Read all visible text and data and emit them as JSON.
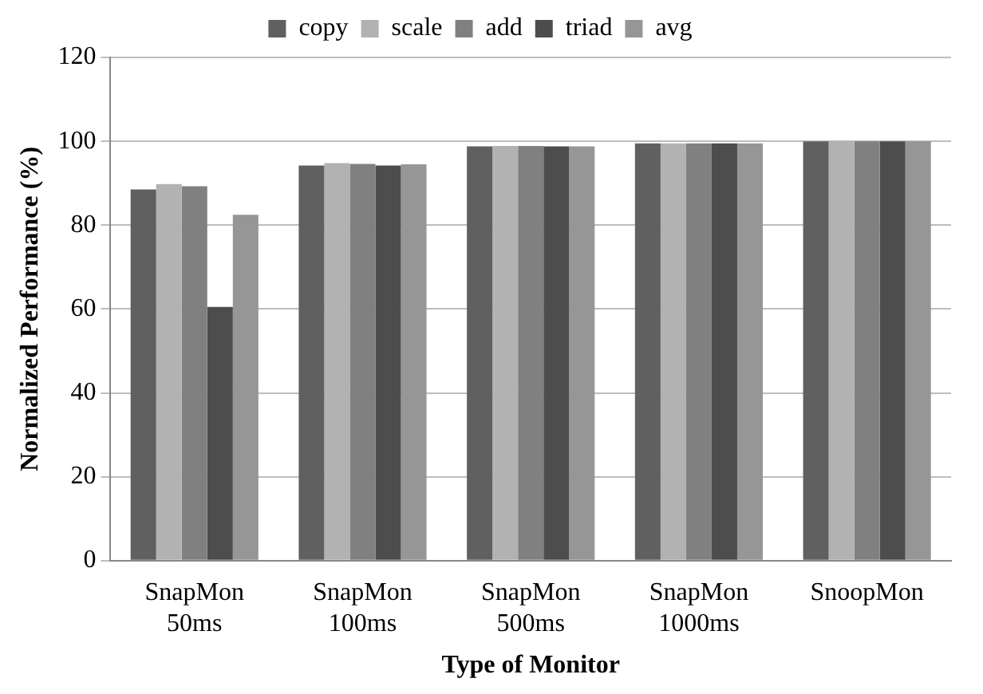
{
  "chart_data": {
    "type": "bar",
    "xlabel": "Type of Monitor",
    "ylabel": "Normalized Performance (%)",
    "categories": [
      "SnapMon\n50ms",
      "SnapMon\n100ms",
      "SnapMon\n500ms",
      "SnapMon\n1000ms",
      "SnoopMon"
    ],
    "series": [
      {
        "name": "copy",
        "color": "#606060",
        "values": [
          88.5,
          94.2,
          98.8,
          99.5,
          100
        ]
      },
      {
        "name": "scale",
        "color": "#b2b2b2",
        "values": [
          89.8,
          94.8,
          98.9,
          99.5,
          100
        ]
      },
      {
        "name": "add",
        "color": "#808080",
        "values": [
          89.3,
          94.6,
          98.9,
          99.5,
          100
        ]
      },
      {
        "name": "triad",
        "color": "#4d4d4d",
        "values": [
          60.5,
          94.2,
          98.8,
          99.5,
          100
        ]
      },
      {
        "name": "avg",
        "color": "#969696",
        "values": [
          82.5,
          94.5,
          98.8,
          99.5,
          100
        ]
      }
    ],
    "ylim": [
      0,
      120
    ],
    "yticks": [
      0,
      20,
      40,
      60,
      80,
      100,
      120
    ],
    "grid": "y",
    "legend": "top"
  }
}
